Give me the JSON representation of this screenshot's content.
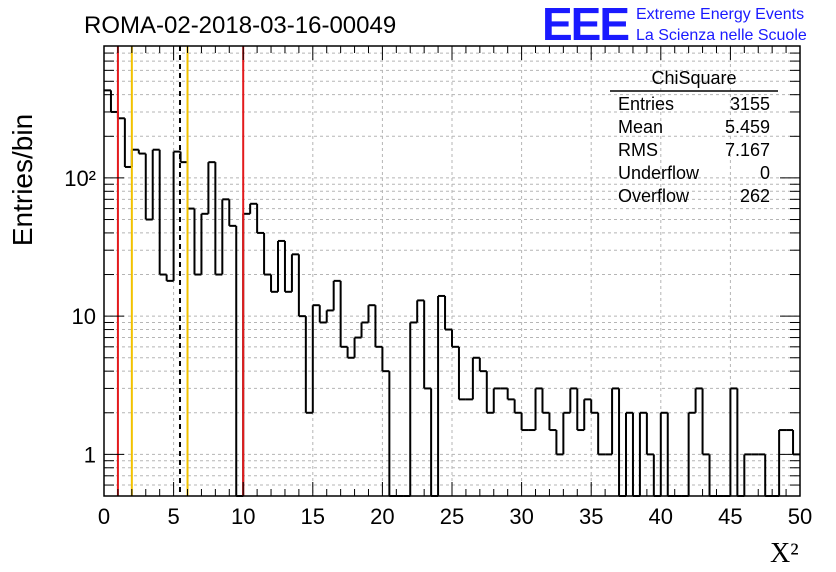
{
  "logo": {
    "mark": "EEE",
    "line1": "Extreme Energy Events",
    "line2": "La Scienza nelle Scuole",
    "color": "#1a1aff"
  },
  "chart_data": {
    "type": "histogram",
    "title": "ROMA-02-2018-03-16-00049",
    "xlabel": "X²",
    "ylabel": "Entries/bin",
    "xlim": [
      0,
      50
    ],
    "ylim": [
      0.5,
      900
    ],
    "log_y": true,
    "grid": true,
    "bin_width": 0.5,
    "x_ticks": [
      "0",
      "5",
      "10",
      "15",
      "20",
      "25",
      "30",
      "35",
      "40",
      "45",
      "50"
    ],
    "y_ticks": [
      {
        "value": 1,
        "label": "1"
      },
      {
        "value": 10,
        "label": "10"
      },
      {
        "value": 100,
        "label": "10²"
      }
    ],
    "values": [
      430,
      300,
      270,
      120,
      160,
      150,
      50,
      160,
      20,
      18,
      155,
      130,
      60,
      20,
      55,
      130,
      20,
      70,
      45,
      0,
      55,
      65,
      40,
      20,
      15,
      35,
      15,
      28,
      10,
      2,
      12,
      9,
      11,
      18,
      6,
      5,
      7,
      9,
      12,
      6,
      4,
      0,
      0,
      0,
      9,
      13,
      3,
      0,
      14,
      8,
      6,
      2.5,
      2.5,
      5,
      4,
      2,
      3,
      3,
      2.5,
      2,
      1.5,
      1.5,
      3,
      2,
      1.5,
      1,
      2,
      3,
      1.5,
      2.5,
      2,
      1,
      1,
      3,
      0,
      2,
      0,
      2,
      1,
      0,
      2,
      0,
      0,
      0,
      2,
      3,
      1,
      0,
      0,
      0,
      3,
      0,
      1,
      1,
      1,
      0,
      0,
      1.5,
      1.5,
      1
    ],
    "vertical_lines": [
      {
        "x": 1.0,
        "color": "#e31a1c",
        "style": "solid"
      },
      {
        "x": 2.0,
        "color": "#f2c200",
        "style": "solid"
      },
      {
        "x": 5.459,
        "color": "#000000",
        "style": "dashed"
      },
      {
        "x": 6.0,
        "color": "#f2c200",
        "style": "solid"
      },
      {
        "x": 10.0,
        "color": "#e31a1c",
        "style": "solid"
      }
    ],
    "stats": {
      "title": "ChiSquare",
      "rows": [
        {
          "label": "Entries",
          "value": "3155"
        },
        {
          "label": "Mean",
          "value": "5.459"
        },
        {
          "label": "RMS",
          "value": "7.167"
        },
        {
          "label": "Underflow",
          "value": "0"
        },
        {
          "label": "Overflow",
          "value": "262"
        }
      ]
    }
  }
}
